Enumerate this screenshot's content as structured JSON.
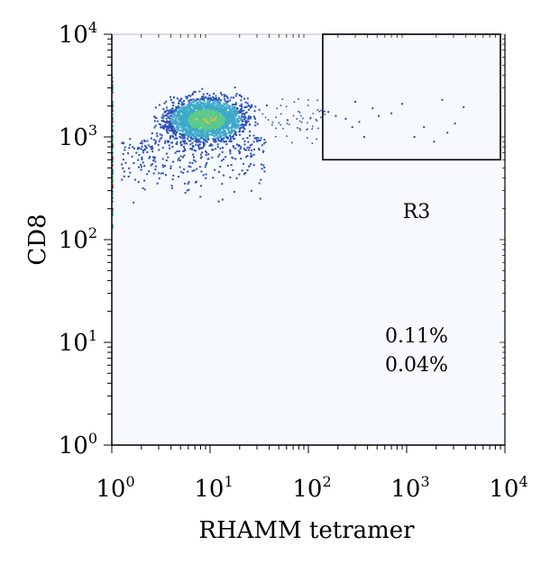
{
  "chart_data": {
    "type": "scatter",
    "title": "",
    "xlabel": "RHAMM tetramer",
    "ylabel": "CD8",
    "x_scale": "log",
    "y_scale": "log",
    "xlim": [
      1,
      10000
    ],
    "ylim": [
      1,
      10000
    ],
    "x_ticks": [
      {
        "base": "10",
        "exp": "0",
        "value": 1
      },
      {
        "base": "10",
        "exp": "1",
        "value": 10
      },
      {
        "base": "10",
        "exp": "2",
        "value": 100
      },
      {
        "base": "10",
        "exp": "3",
        "value": 1000
      },
      {
        "base": "10",
        "exp": "4",
        "value": 10000
      }
    ],
    "y_ticks": [
      {
        "base": "10",
        "exp": "0",
        "value": 1
      },
      {
        "base": "10",
        "exp": "1",
        "value": 10
      },
      {
        "base": "10",
        "exp": "2",
        "value": 100
      },
      {
        "base": "10",
        "exp": "3",
        "value": 1000
      },
      {
        "base": "10",
        "exp": "4",
        "value": 10000
      }
    ],
    "gate": {
      "label": "R3",
      "x_range": [
        140,
        9000
      ],
      "y_range": [
        600,
        10000
      ]
    },
    "percentages": [
      "0.11%",
      "0.04%"
    ],
    "main_population": {
      "x_center": 9,
      "y_center": 1500
    },
    "gate_events": [
      [
        190,
        1600
      ],
      [
        240,
        1500
      ],
      [
        300,
        2200
      ],
      [
        330,
        1400
      ],
      [
        370,
        1000
      ],
      [
        450,
        1900
      ],
      [
        520,
        1600
      ],
      [
        700,
        1700
      ],
      [
        900,
        2100
      ],
      [
        1200,
        1000
      ],
      [
        1500,
        1250
      ],
      [
        1900,
        900
      ],
      [
        2300,
        2300
      ],
      [
        3100,
        1350
      ],
      [
        3800,
        1950
      ],
      [
        2600,
        1100
      ],
      [
        160,
        1750
      ],
      [
        280,
        1250
      ]
    ],
    "colors": {
      "background": "#f6f9fd",
      "low_density": "#2a4fb8",
      "mid_density": "#3fa9c9",
      "high_density": "#5cc98a",
      "peak_density": "#d8c43a"
    }
  }
}
